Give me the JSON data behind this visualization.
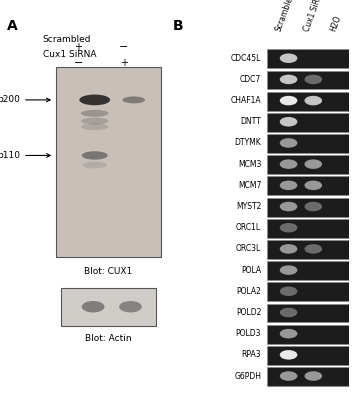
{
  "panel_A_label": "A",
  "panel_B_label": "B",
  "scrambled_label": "Scrambled",
  "cux1_label": "Cux1 SiRNA",
  "scrambled_plus": "+",
  "scrambled_minus": "−",
  "cux1_plus": "+",
  "cux1_minus": "−",
  "p200_label": "p200",
  "p110_label": "p110",
  "blot_cux1": "Blot: CUX1",
  "blot_actin": "Blot: Actin",
  "col_labels": [
    "Scrambled",
    "Cux1 SiRNA",
    "H2O"
  ],
  "gene_labels": [
    "CDC45L",
    "CDC7",
    "CHAF1A",
    "DNTT",
    "DTYMK",
    "MCM3",
    "MCM7",
    "MYST2",
    "ORC1L",
    "ORC3L",
    "POLA",
    "POLA2",
    "POLD2",
    "POLD3",
    "RPA3",
    "G6PDH"
  ],
  "bg_gel": "#b8b8b8",
  "bg_white": "#f0f0f0",
  "band_dark": "#1a1a1a",
  "band_medium": "#444444",
  "band_light": "#888888",
  "wb_bg": "#c8c0b8",
  "text_color": "#000000",
  "fig_bg": "#ffffff"
}
